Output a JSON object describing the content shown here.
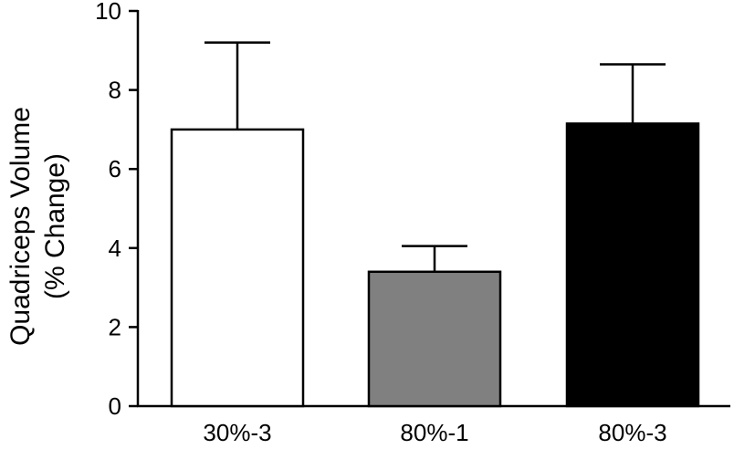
{
  "chart_data": {
    "type": "bar",
    "categories": [
      "30%-3",
      "80%-1",
      "80%-3"
    ],
    "values": [
      7.0,
      3.4,
      7.15
    ],
    "error": [
      2.2,
      0.65,
      1.5
    ],
    "bar_colors": [
      "#ffffff",
      "#808080",
      "#000000"
    ],
    "ylabel_lines": [
      "Quadriceps Volume",
      "(% Change)"
    ],
    "ylim": [
      0,
      10
    ],
    "yticks": [
      "0",
      "2",
      "4",
      "6",
      "8",
      "10"
    ],
    "grid": false
  }
}
